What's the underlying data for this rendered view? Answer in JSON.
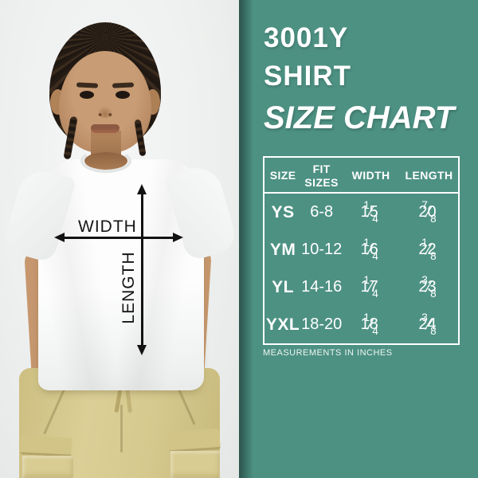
{
  "colors": {
    "accent_teal": "#4d9183",
    "photo_bg": "#eef0ef",
    "arrow_black": "#131313",
    "table_text": "#ffffff",
    "pants_khaki": "#d6c98e"
  },
  "panel": {
    "title_line1": "3001Y",
    "title_line2": "SHIRT",
    "title_line3": "SIZE CHART",
    "footnote": "MEASUREMENTS IN INCHES"
  },
  "diagram": {
    "width_label": "WIDTH",
    "length_label": "LENGTH"
  },
  "chart_data": {
    "type": "table",
    "title": "3001Y SHIRT SIZE CHART",
    "columns": [
      "SIZE",
      "FIT SIZES",
      "WIDTH",
      "LENGTH"
    ],
    "rows": [
      {
        "size": "YS",
        "fit": "6-8",
        "width": "15 1/4",
        "length": "20 7/8"
      },
      {
        "size": "YM",
        "fit": "10-12",
        "width": "16 1/4",
        "length": "22 1/8"
      },
      {
        "size": "YL",
        "fit": "14-16",
        "width": "17 1/4",
        "length": "23 3/8"
      },
      {
        "size": "YXL",
        "fit": "18-20",
        "width": "18 1/4",
        "length": "24 3/8"
      }
    ],
    "units_note": "MEASUREMENTS IN INCHES",
    "layout": {
      "grid": false,
      "header_separator": true,
      "border_color": "#ffffff"
    }
  }
}
